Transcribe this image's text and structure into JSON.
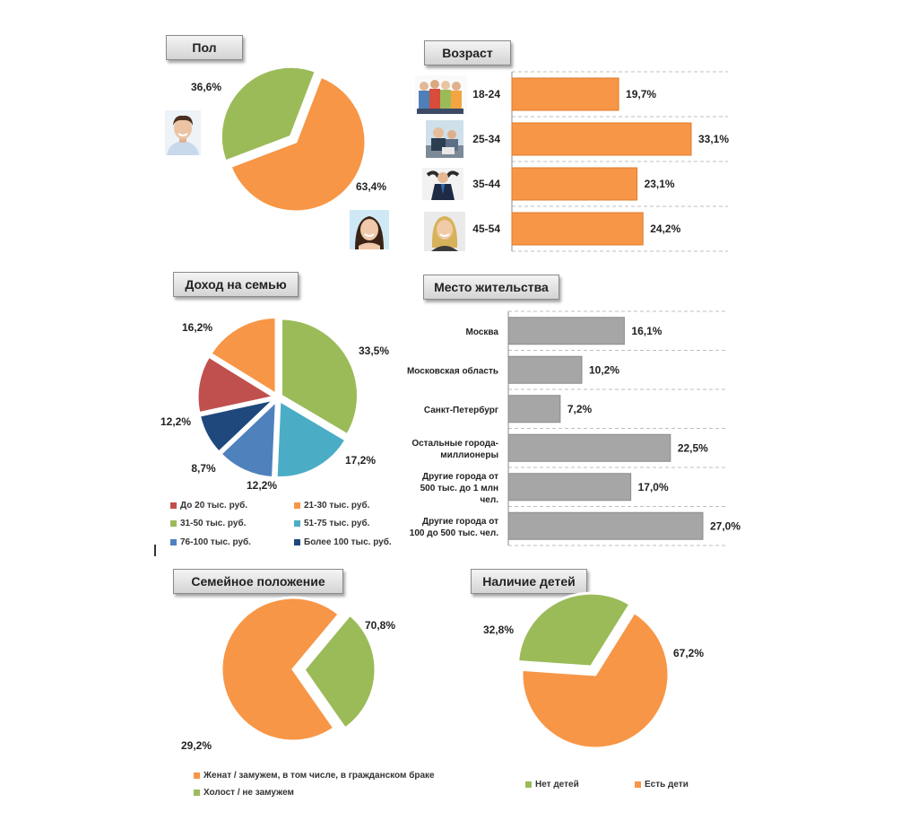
{
  "colors": {
    "orange": "#f79646",
    "green": "#9bbb59",
    "red": "#c0504d",
    "teal": "#4bacc6",
    "blue": "#4f81bd",
    "navy": "#1f497d",
    "gray": "#a6a6a6"
  },
  "icons": [
    "male-avatar-icon",
    "female-avatar-icon",
    "youth-group-photo-icon",
    "office-workers-photo-icon",
    "businessman-photo-icon",
    "businesswoman-photo-icon"
  ],
  "chart_data": [
    {
      "id": "gender",
      "type": "pie",
      "title": "Пол",
      "slices": [
        {
          "label": "",
          "value": 63.4,
          "text": "63,4%",
          "color": "#f79646"
        },
        {
          "label": "",
          "value": 36.6,
          "text": "36,6%",
          "color": "#9bbb59",
          "exploded": true
        }
      ]
    },
    {
      "id": "age",
      "type": "bar",
      "orientation": "horizontal",
      "title": "Возраст",
      "categories": [
        "18-24",
        "25-34",
        "35-44",
        "45-54"
      ],
      "values": [
        19.7,
        33.1,
        23.1,
        24.2
      ],
      "value_labels": [
        "19,7%",
        "33,1%",
        "23,1%",
        "24,2%"
      ],
      "xlim": [
        0,
        33.1
      ],
      "grid": true,
      "color": "#f79646"
    },
    {
      "id": "income",
      "type": "pie",
      "title": "Доход на семью",
      "slices": [
        {
          "label": "31-50 тыс. руб.",
          "value": 33.5,
          "text": "33,5%",
          "color": "#9bbb59"
        },
        {
          "label": "51-75 тыс. руб.",
          "value": 17.2,
          "text": "17,2%",
          "color": "#4bacc6"
        },
        {
          "label": "76-100 тыс. руб.",
          "value": 12.2,
          "text": "12,2%",
          "color": "#4f81bd"
        },
        {
          "label": "Более 100 тыс. руб.",
          "value": 8.7,
          "text": "8,7%",
          "color": "#1f497d"
        },
        {
          "label": "До 20 тыс. руб.",
          "value": 12.2,
          "text": "12,2%",
          "color": "#c0504d"
        },
        {
          "label": "21-30 тыс. руб.",
          "value": 16.2,
          "text": "16,2%",
          "color": "#f79646"
        }
      ],
      "legend": [
        {
          "label": "До 20 тыс. руб.",
          "color": "#c0504d"
        },
        {
          "label": "21-30 тыс. руб.",
          "color": "#f79646"
        },
        {
          "label": "31-50 тыс. руб.",
          "color": "#9bbb59"
        },
        {
          "label": "51-75 тыс. руб.",
          "color": "#4bacc6"
        },
        {
          "label": "76-100 тыс. руб.",
          "color": "#4f81bd"
        },
        {
          "label": "Более 100 тыс. руб.",
          "color": "#1f497d"
        }
      ],
      "legend_position": "bottom"
    },
    {
      "id": "residence",
      "type": "bar",
      "orientation": "horizontal",
      "title": "Место жительства",
      "categories": [
        "Москва",
        "Московская область",
        "Санкт-Петербург",
        "Остальные города-миллионеры",
        "Другие города от 500 тыс. до 1 млн чел.",
        "Другие города от 100 до 500 тыс. чел."
      ],
      "category_lines": [
        [
          "Москва"
        ],
        [
          "Московская область"
        ],
        [
          "Санкт-Петербург"
        ],
        [
          "Остальные города-",
          "миллионеры"
        ],
        [
          "Другие города от",
          "500 тыс. до 1 млн",
          "чел."
        ],
        [
          "Другие города от",
          "100 до 500 тыс. чел."
        ]
      ],
      "values": [
        16.1,
        10.2,
        7.2,
        22.5,
        17.0,
        27.0
      ],
      "value_labels": [
        "16,1%",
        "10,2%",
        "7,2%",
        "22,5%",
        "17,0%",
        "27,0%"
      ],
      "xlim": [
        0,
        27.0
      ],
      "grid": true,
      "color": "#a6a6a6"
    },
    {
      "id": "marital",
      "type": "pie",
      "title": "Семейное положение",
      "slices": [
        {
          "label": "Женат / замужем, в том числе, в гражданском браке",
          "value": 70.8,
          "text": "70,8%",
          "color": "#f79646"
        },
        {
          "label": "Холост / не замужем",
          "value": 29.2,
          "text": "29,2%",
          "color": "#9bbb59",
          "exploded": true
        }
      ],
      "legend_position": "bottom"
    },
    {
      "id": "children",
      "type": "pie",
      "title": "Наличие детей",
      "slices": [
        {
          "label": "Есть дети",
          "value": 67.2,
          "text": "67,2%",
          "color": "#f79646"
        },
        {
          "label": "Нет детей",
          "value": 32.8,
          "text": "32,8%",
          "color": "#9bbb59",
          "exploded": true
        }
      ],
      "legend": [
        {
          "label": "Нет детей",
          "color": "#9bbb59"
        },
        {
          "label": "Есть дети",
          "color": "#f79646"
        }
      ],
      "legend_position": "bottom"
    }
  ]
}
